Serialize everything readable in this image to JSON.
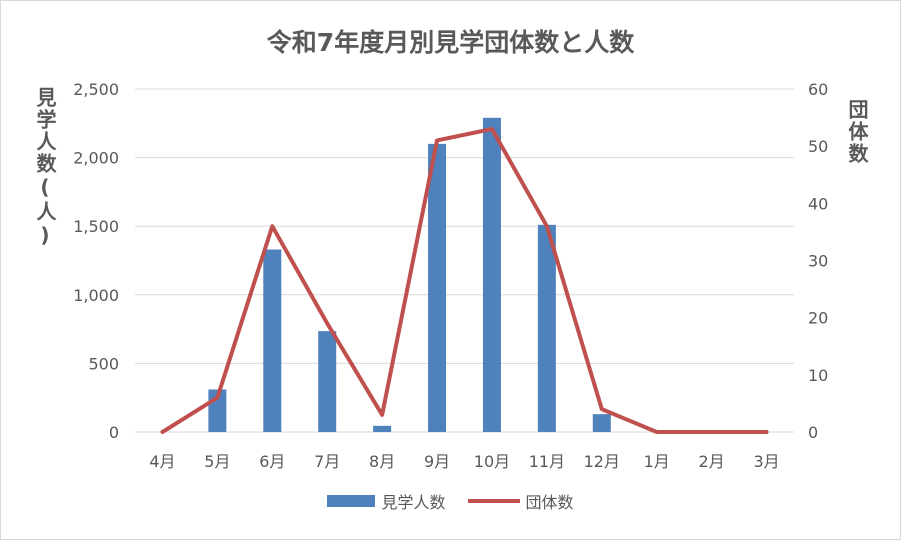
{
  "chart_data": {
    "type": "bar",
    "title": "令和7年度月別見学団体数と人数",
    "categories": [
      "4月",
      "5月",
      "6月",
      "7月",
      "8月",
      "9月",
      "10月",
      "11月",
      "12月",
      "1月",
      "2月",
      "3月"
    ],
    "series": [
      {
        "name": "見学人数",
        "type": "bar",
        "axis": "left",
        "color": "#4f81bd",
        "values": [
          0,
          310,
          1330,
          735,
          45,
          2100,
          2290,
          1510,
          130,
          0,
          0,
          0
        ]
      },
      {
        "name": "団体数",
        "type": "line",
        "axis": "right",
        "color": "#c0504d",
        "values": [
          0,
          6,
          36,
          19,
          3,
          51,
          53,
          36,
          4,
          0,
          0,
          0
        ]
      }
    ],
    "ylabel": "見学人数(人)",
    "y2label": "団体数",
    "ylim": [
      0,
      2500
    ],
    "yticks": [
      "0",
      "500",
      "1,000",
      "1,500",
      "2,000",
      "2,500"
    ],
    "y2lim": [
      0,
      60
    ],
    "y2ticks": [
      "0",
      "10",
      "20",
      "30",
      "40",
      "50",
      "60"
    ],
    "grid": true,
    "legend_position": "bottom"
  }
}
